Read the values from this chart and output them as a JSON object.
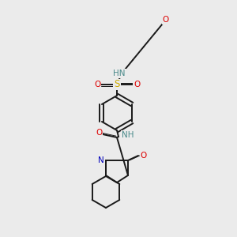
{
  "background_color": "#ebebeb",
  "fig_size": [
    3.0,
    3.0
  ],
  "dpi": 100,
  "atom_colors": {
    "C": "#000000",
    "N": "#0000bb",
    "O": "#dd0000",
    "S": "#ccaa00",
    "H": "#4a8a8a"
  },
  "bond_color": "#1a1a1a",
  "bond_width": 1.4,
  "font_size": 7.5
}
